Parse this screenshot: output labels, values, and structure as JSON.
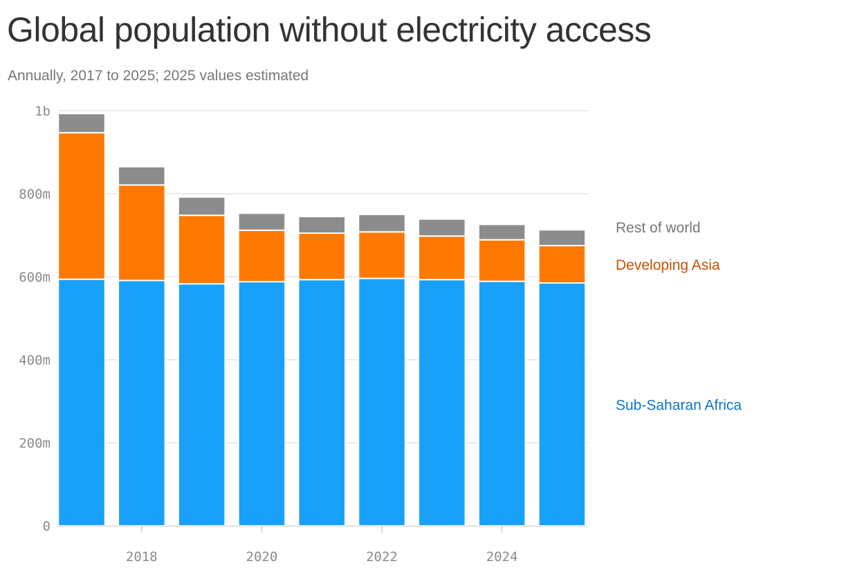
{
  "page": {
    "title": "Global population without electricity access",
    "subtitle": "Annually, 2017 to 2025; 2025 values estimated"
  },
  "chart_data": {
    "type": "bar",
    "stacked": true,
    "title": "Global population without electricity access",
    "subtitle": "Annually, 2017 to 2025; 2025 values estimated",
    "xlabel": "",
    "ylabel": "",
    "categories": [
      2017,
      2018,
      2019,
      2020,
      2021,
      2022,
      2023,
      2024,
      2025
    ],
    "x_tick_labels": [
      "2018",
      "2020",
      "2022",
      "2024"
    ],
    "x_tick_values": [
      2018,
      2020,
      2022,
      2024
    ],
    "y_tick_labels": [
      "0",
      "200m",
      "400m",
      "600m",
      "800m",
      "1b"
    ],
    "y_tick_values": [
      0,
      200,
      400,
      600,
      800,
      1000
    ],
    "ylim": [
      0,
      1000
    ],
    "y_units": "millions of people",
    "grid": true,
    "legend_placement": "right, labels aligned beside bar segments",
    "series": [
      {
        "name": "Sub-Saharan Africa",
        "color": "#18a0fb",
        "label_color": "#0a75c9",
        "values": [
          594,
          591,
          583,
          588,
          593,
          596,
          593,
          589,
          585
        ]
      },
      {
        "name": "Developing Asia",
        "color": "#ff7900",
        "label_color": "#c75000",
        "values": [
          353,
          230,
          165,
          124,
          112,
          112,
          105,
          100,
          90
        ]
      },
      {
        "name": "Rest of world",
        "color": "#8c8c8c",
        "label_color": "#777777",
        "values": [
          46,
          44,
          44,
          41,
          40,
          42,
          41,
          37,
          38
        ]
      }
    ]
  }
}
